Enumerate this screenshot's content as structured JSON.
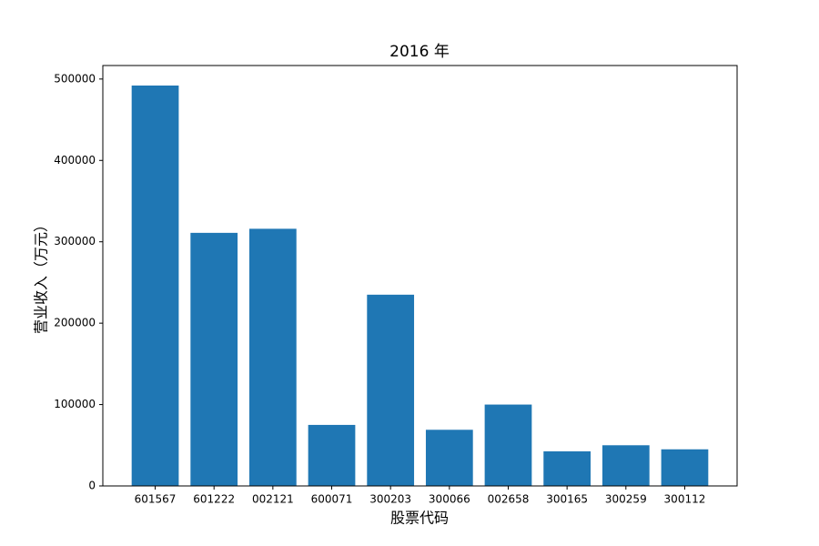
{
  "chart_data": {
    "type": "bar",
    "title": "2016 年",
    "x_label": "股票代码",
    "y_label": "营业收入（万元）",
    "categories": [
      "601567",
      "601222",
      "002121",
      "600071",
      "300203",
      "300066",
      "002658",
      "300165",
      "300259",
      "300112"
    ],
    "values": [
      492000,
      311000,
      316000,
      75000,
      235000,
      69000,
      100000,
      42500,
      50000,
      45000
    ],
    "color": "#1f77b4",
    "ylim": [
      0,
      516600
    ],
    "yticks": [
      0,
      100000,
      200000,
      300000,
      400000,
      500000
    ],
    "grid": false
  }
}
